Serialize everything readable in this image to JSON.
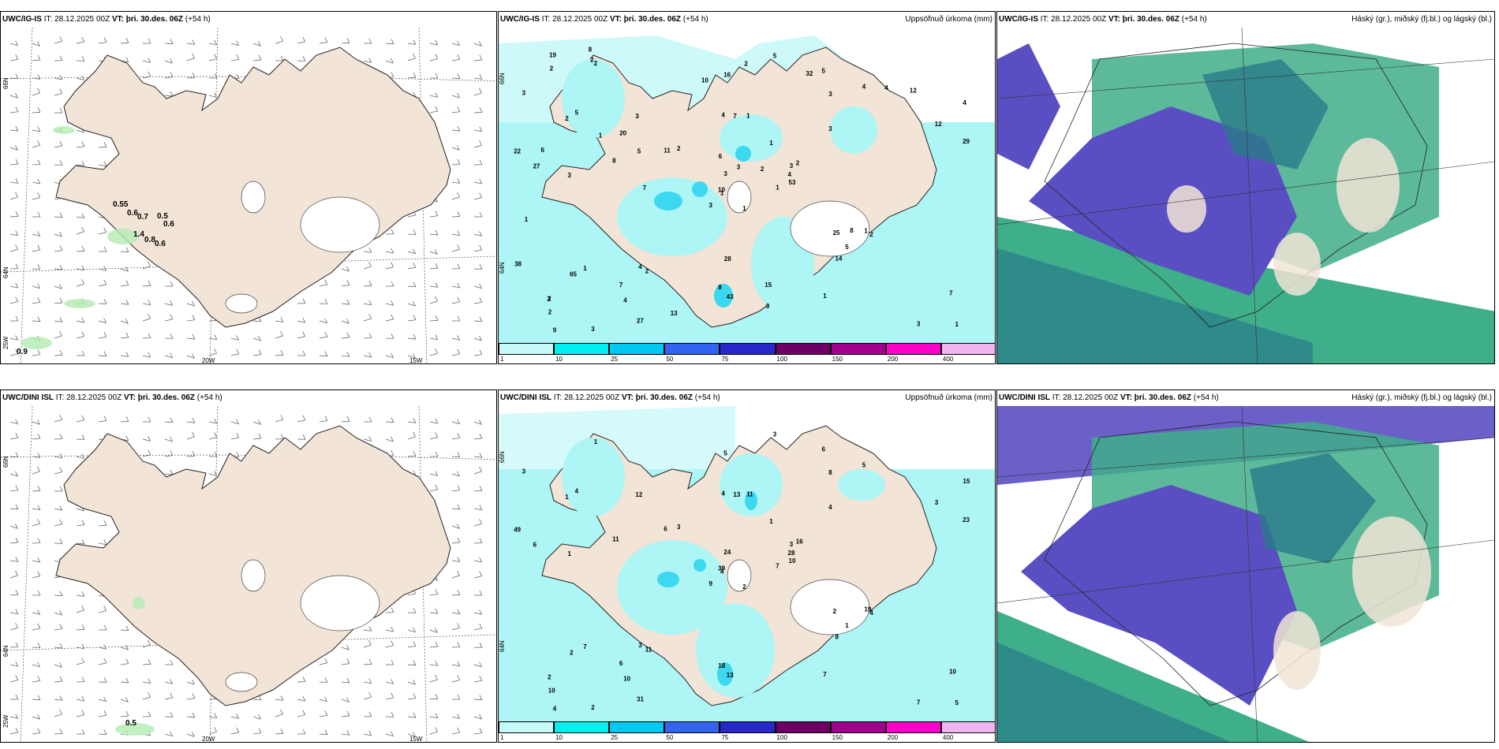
{
  "rows": [
    {
      "panels": [
        {
          "model": "UWC/IG-IS",
          "it_label": "IT:",
          "it": "28.12.2025 00Z",
          "vt_label": "VT:",
          "vt": "þri. 30.des. 06Z",
          "lead": "(+54 h)",
          "right_title": ""
        },
        {
          "model": "UWC/IG-IS",
          "it_label": "IT:",
          "it": "28.12.2025 00Z",
          "vt_label": "VT:",
          "vt": "þri. 30.des. 06Z",
          "lead": "(+54 h)",
          "right_title": "Uppsöfnuð úrkoma (mm)"
        },
        {
          "model": "UWC/IG-IS",
          "it_label": "IT:",
          "it": "28.12.2025 00Z",
          "vt_label": "VT:",
          "vt": "þri. 30.des. 06Z",
          "lead": "(+54 h)",
          "right_title": "Háský (gr.), miðský (fj.bl.) og lágský (bl.)"
        }
      ]
    },
    {
      "panels": [
        {
          "model": "UWC/DINI ISL",
          "it_label": "IT:",
          "it": "28.12.2025 00Z",
          "vt_label": "VT:",
          "vt": "þri. 30.des. 06Z",
          "lead": "(+54 h)",
          "right_title": ""
        },
        {
          "model": "UWC/DINI ISL",
          "it_label": "IT:",
          "it": "28.12.2025 00Z",
          "vt_label": "VT:",
          "vt": "þri. 30.des. 06Z",
          "lead": "(+54 h)",
          "right_title": "Uppsöfnuð úrkoma (mm)"
        },
        {
          "model": "UWC/DINI ISL",
          "it_label": "IT:",
          "it": "28.12.2025 00Z",
          "vt_label": "VT:",
          "vt": "þri. 30.des. 06Z",
          "lead": "(+54 h)",
          "right_title": "Háský (gr.), miðský (fj.bl.) og lágský (bl.)"
        }
      ]
    }
  ],
  "lon_labels": [
    "25W",
    "20W",
    "15W"
  ],
  "lat_labels": [
    "66N",
    "64N"
  ],
  "colorbar": {
    "ticks": [
      "1",
      "10",
      "25",
      "50",
      "75",
      "100",
      "150",
      "200",
      "400"
    ],
    "colors": [
      "#c8fafa",
      "#00f0f0",
      "#00c8f0",
      "#3264f0",
      "#2828c8",
      "#6e0064",
      "#a0008c",
      "#ff00c8",
      "#f0b4f0"
    ]
  },
  "colors": {
    "land": "#f2e4d6",
    "precip": "#aef5f5",
    "precip_dark": "#3cd8f0",
    "high_cloud": "#3fae8a",
    "mid_cloud": "#5a4fc2",
    "low_cloud": "#2a7a8a",
    "snow": "#ffffff"
  },
  "wind_values_top": [
    {
      "v": "0.55"
    },
    {
      "v": "0.6"
    },
    {
      "v": "0.7"
    },
    {
      "v": "0.5"
    },
    {
      "v": "0.6"
    },
    {
      "v": "1.4"
    },
    {
      "v": "0.8"
    },
    {
      "v": "0.6"
    },
    {
      "v": "0.9"
    }
  ],
  "wind_values_bottom": [
    {
      "v": "0.5"
    }
  ],
  "precip_top": [
    "1",
    "2",
    "1",
    "2",
    "3",
    "2",
    "5",
    "1",
    "3",
    "1",
    "2",
    "1",
    "3",
    "4",
    "3",
    "3",
    "3",
    "4",
    "1",
    "1",
    "2",
    "2",
    "4",
    "7",
    "2",
    "2",
    "5",
    "16",
    "27",
    "25",
    "29",
    "10",
    "8",
    "3",
    "3",
    "4",
    "4",
    "3",
    "7",
    "1",
    "5",
    "11",
    "8",
    "14",
    "27",
    "22",
    "4",
    "9",
    "43",
    "53",
    "65",
    "12",
    "3",
    "5",
    "1",
    "7",
    "2",
    "19",
    "15",
    "12",
    "2",
    "7",
    "6",
    "20",
    "4",
    "8",
    "32",
    "10",
    "3",
    "38",
    "28",
    "13",
    "8",
    "5",
    "3",
    "2",
    "1",
    "1",
    "6",
    "9",
    "2"
  ],
  "precip_bottom": [
    "2",
    "1",
    "4",
    "2",
    "3",
    "11",
    "6",
    "11",
    "8",
    "7",
    "1",
    "5",
    "1",
    "15",
    "9",
    "4",
    "2",
    "4",
    "1",
    "7",
    "3",
    "10",
    "10",
    "13",
    "16",
    "4",
    "4",
    "5",
    "6",
    "2",
    "23",
    "39",
    "18",
    "24",
    "12",
    "5",
    "3",
    "7",
    "10",
    "19",
    "3",
    "6",
    "11",
    "8",
    "31",
    "49",
    "28",
    "4",
    "13",
    "10",
    "2",
    "3",
    "3",
    "1",
    "7",
    "6"
  ]
}
